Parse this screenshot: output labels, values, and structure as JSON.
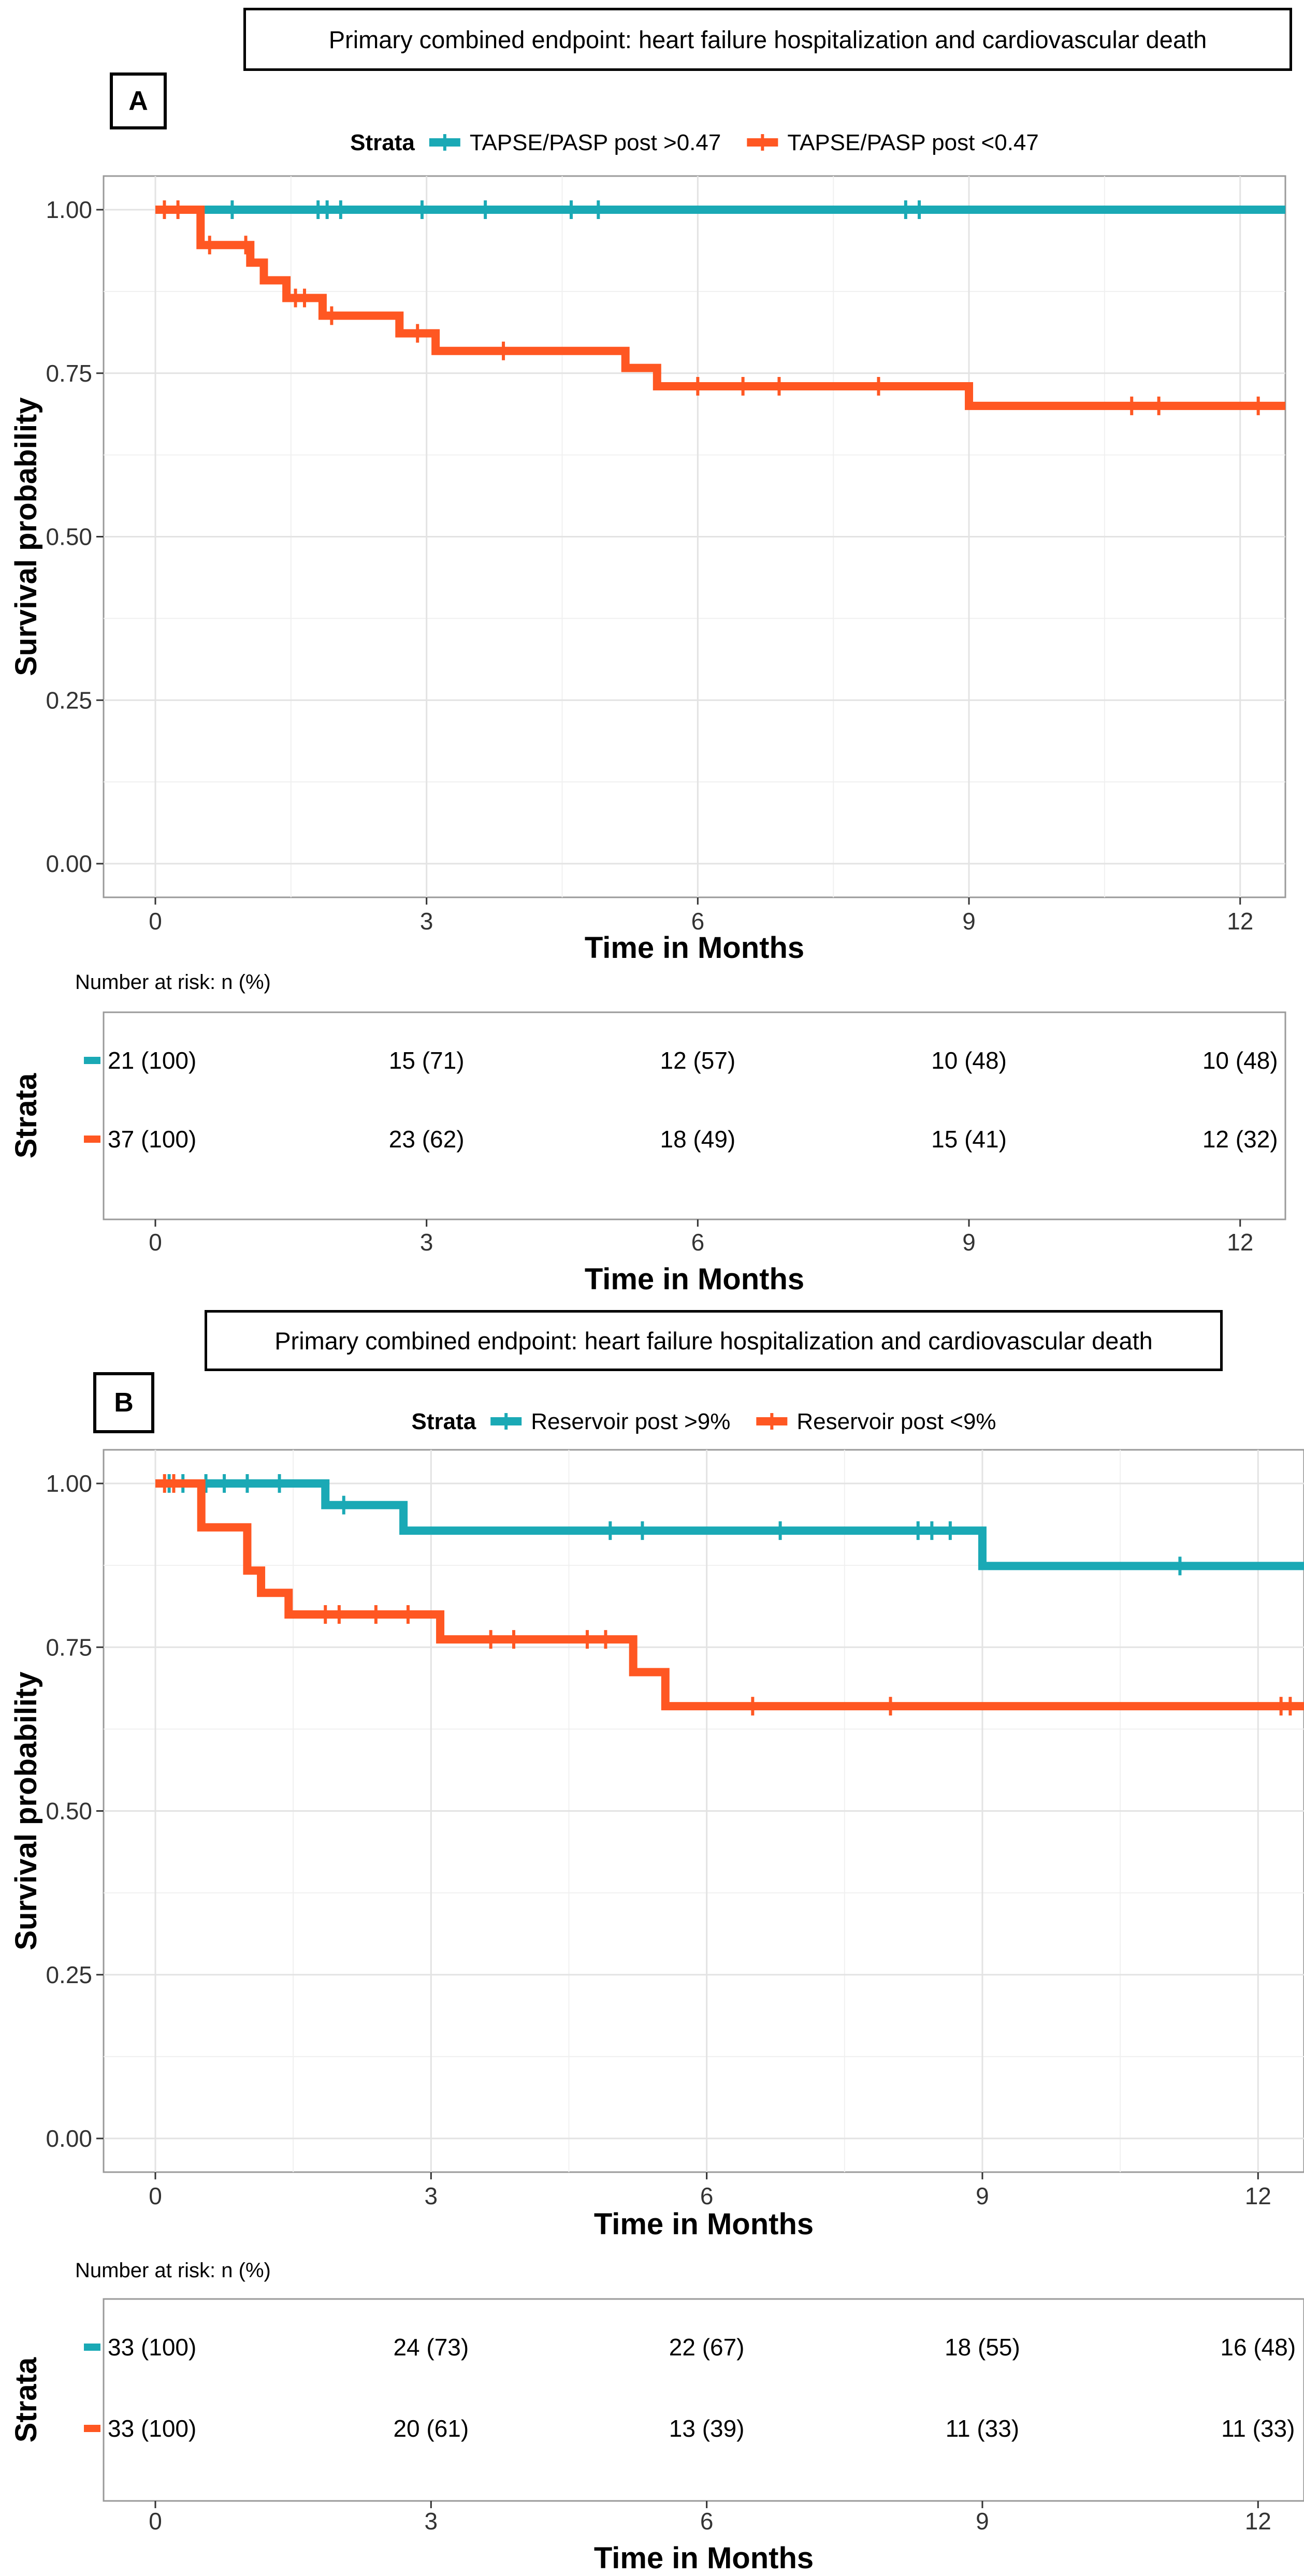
{
  "panels": [
    {
      "label": "A",
      "header": "Primary combined endpoint: heart failure hospitalization and cardiovascular death",
      "legend_title": "Strata",
      "strata_axis_label": "Strata",
      "risk_table_title": "Number at risk: n (%)",
      "chart_data": {
        "type": "line",
        "subtype": "kaplan-meier step",
        "xlabel": "Time in Months",
        "ylabel": "Survival probability",
        "xlim": [
          0,
          12.5
        ],
        "ylim": [
          0,
          1
        ],
        "xticks": [
          0,
          3,
          6,
          9,
          12
        ],
        "yticks": [
          0.0,
          0.25,
          0.5,
          0.75,
          1.0
        ],
        "ytick_labels": [
          "0.00",
          "0.25",
          "0.50",
          "0.75",
          "1.00"
        ],
        "grid": true,
        "legend_position": "top",
        "series": [
          {
            "name": "TAPSE/PASP post >0.47",
            "color": "#1aa9b5",
            "steps": [
              [
                0,
                1.0
              ],
              [
                12.5,
                1.0
              ]
            ],
            "censored": [
              [
                0.85,
                1.0
              ],
              [
                1.8,
                1.0
              ],
              [
                1.9,
                1.0
              ],
              [
                2.05,
                1.0
              ],
              [
                2.95,
                1.0
              ],
              [
                3.65,
                1.0
              ],
              [
                4.6,
                1.0
              ],
              [
                4.9,
                1.0
              ],
              [
                8.3,
                1.0
              ],
              [
                8.45,
                1.0
              ]
            ]
          },
          {
            "name": "TAPSE/PASP post <0.47",
            "color": "#ff5722",
            "steps": [
              [
                0,
                1.0
              ],
              [
                0.5,
                0.946
              ],
              [
                1.05,
                0.919
              ],
              [
                1.2,
                0.892
              ],
              [
                1.45,
                0.865
              ],
              [
                1.85,
                0.838
              ],
              [
                2.7,
                0.811
              ],
              [
                3.1,
                0.784
              ],
              [
                5.2,
                0.758
              ],
              [
                5.55,
                0.73
              ],
              [
                9.0,
                0.7
              ],
              [
                12.5,
                0.7
              ]
            ],
            "censored": [
              [
                0.1,
                1.0
              ],
              [
                0.25,
                1.0
              ],
              [
                0.6,
                0.946
              ],
              [
                1.0,
                0.946
              ],
              [
                1.55,
                0.865
              ],
              [
                1.65,
                0.865
              ],
              [
                1.95,
                0.838
              ],
              [
                2.9,
                0.811
              ],
              [
                3.85,
                0.784
              ],
              [
                6.0,
                0.73
              ],
              [
                6.5,
                0.73
              ],
              [
                6.9,
                0.73
              ],
              [
                8.0,
                0.73
              ],
              [
                10.8,
                0.7
              ],
              [
                11.1,
                0.7
              ],
              [
                12.2,
                0.7
              ]
            ]
          }
        ],
        "risk_table": {
          "times": [
            0,
            3,
            6,
            9,
            12
          ],
          "rows": [
            {
              "stratum": "TAPSE/PASP post >0.47",
              "values": [
                "21 (100)",
                "15 (71)",
                "12 (57)",
                "10 (48)",
                "10 (48)"
              ]
            },
            {
              "stratum": "TAPSE/PASP post <0.47",
              "values": [
                "37 (100)",
                "23 (62)",
                "18 (49)",
                "15 (41)",
                "12 (32)"
              ]
            }
          ],
          "xlabel": "Time in Months"
        }
      }
    },
    {
      "label": "B",
      "header": "Primary combined endpoint: heart failure hospitalization and cardiovascular death",
      "legend_title": "Strata",
      "strata_axis_label": "Strata",
      "risk_table_title": "Number at risk: n (%)",
      "chart_data": {
        "type": "line",
        "subtype": "kaplan-meier step",
        "xlabel": "Time in Months",
        "ylabel": "Survival probability",
        "xlim": [
          0,
          12.5
        ],
        "ylim": [
          0,
          1
        ],
        "xticks": [
          0,
          3,
          6,
          9,
          12
        ],
        "yticks": [
          0.0,
          0.25,
          0.5,
          0.75,
          1.0
        ],
        "ytick_labels": [
          "0.00",
          "0.25",
          "0.50",
          "0.75",
          "1.00"
        ],
        "grid": true,
        "legend_position": "top",
        "series": [
          {
            "name": "Reservoir post >9%",
            "color": "#1aa9b5",
            "steps": [
              [
                0,
                1.0
              ],
              [
                1.85,
                0.967
              ],
              [
                2.7,
                0.928
              ],
              [
                9.0,
                0.874
              ],
              [
                12.5,
                0.874
              ]
            ],
            "censored": [
              [
                0.15,
                1.0
              ],
              [
                0.3,
                1.0
              ],
              [
                0.55,
                1.0
              ],
              [
                0.75,
                1.0
              ],
              [
                1.0,
                1.0
              ],
              [
                1.35,
                1.0
              ],
              [
                2.05,
                0.967
              ],
              [
                4.95,
                0.928
              ],
              [
                5.3,
                0.928
              ],
              [
                6.8,
                0.928
              ],
              [
                8.3,
                0.928
              ],
              [
                8.45,
                0.928
              ],
              [
                8.65,
                0.928
              ],
              [
                11.15,
                0.874
              ]
            ]
          },
          {
            "name": "Reservoir post <9%",
            "color": "#ff5722",
            "steps": [
              [
                0,
                1.0
              ],
              [
                0.5,
                0.933
              ],
              [
                1.0,
                0.867
              ],
              [
                1.15,
                0.833
              ],
              [
                1.45,
                0.8
              ],
              [
                3.1,
                0.762
              ],
              [
                5.2,
                0.712
              ],
              [
                5.55,
                0.66
              ],
              [
                12.5,
                0.66
              ]
            ],
            "censored": [
              [
                0.1,
                1.0
              ],
              [
                0.2,
                1.0
              ],
              [
                1.85,
                0.8
              ],
              [
                2.0,
                0.8
              ],
              [
                2.4,
                0.8
              ],
              [
                2.75,
                0.8
              ],
              [
                3.65,
                0.762
              ],
              [
                3.9,
                0.762
              ],
              [
                4.7,
                0.762
              ],
              [
                4.9,
                0.762
              ],
              [
                6.5,
                0.66
              ],
              [
                8.0,
                0.66
              ],
              [
                12.25,
                0.66
              ],
              [
                12.35,
                0.66
              ]
            ]
          }
        ],
        "risk_table": {
          "times": [
            0,
            3,
            6,
            9,
            12
          ],
          "rows": [
            {
              "stratum": "Reservoir post >9%",
              "values": [
                "33 (100)",
                "24 (73)",
                "22 (67)",
                "18 (55)",
                "16 (48)"
              ]
            },
            {
              "stratum": "Reservoir post <9%",
              "values": [
                "33 (100)",
                "20 (61)",
                "13 (39)",
                "11 (33)",
                "11 (33)"
              ]
            }
          ],
          "xlabel": "Time in Months"
        }
      }
    }
  ]
}
